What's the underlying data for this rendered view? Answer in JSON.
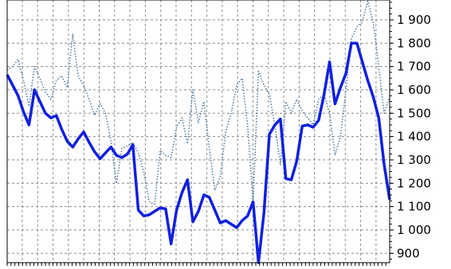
{
  "chart_data": {
    "type": "line",
    "title": "",
    "xlabel": "",
    "ylabel": "",
    "ylim": [
      860,
      1985
    ],
    "x_count": 61,
    "grid": true,
    "legend": "none",
    "y_ticks": [
      900,
      1000,
      1100,
      1200,
      1300,
      1400,
      1500,
      1600,
      1700,
      1800,
      1900
    ],
    "y_tick_labels": [
      "900",
      "1 000",
      "1 100",
      "1 200",
      "1 300",
      "1 400",
      "1 500",
      "1 600",
      "1 700",
      "1 800",
      "1 900"
    ],
    "series": [
      {
        "style": "solid",
        "color": "#1020e0",
        "values": [
          1665,
          1620,
          1575,
          1505,
          1450,
          1600,
          1550,
          1500,
          1480,
          1490,
          1430,
          1380,
          1355,
          1390,
          1420,
          1375,
          1335,
          1305,
          1330,
          1355,
          1320,
          1310,
          1325,
          1365,
          1085,
          1060,
          1065,
          1080,
          1095,
          1090,
          940,
          1085,
          1160,
          1215,
          1035,
          1080,
          1150,
          1140,
          1085,
          1030,
          1040,
          1025,
          1010,
          1040,
          1060,
          1120,
          860,
          1075,
          1410,
          1450,
          1475,
          1220,
          1215,
          1295,
          1445,
          1450,
          1440,
          1470,
          1580,
          1720,
          1540
        ]
      },
      {
        "style": "dotted",
        "color": "#4a78a0",
        "values": [
          1685,
          1700,
          1730,
          1640,
          1530,
          1700,
          1650,
          1590,
          1560,
          1640,
          1660,
          1610,
          1840,
          1660,
          1620,
          1560,
          1490,
          1540,
          1500,
          1380,
          1200,
          1350,
          1360,
          1375,
          1330,
          1250,
          1120,
          1110,
          1340,
          1320,
          1310,
          1440,
          1480,
          1370,
          1600,
          1460,
          1550,
          1350,
          1170,
          1230,
          1420,
          1500,
          1620,
          1650,
          1450,
          1120,
          1680,
          1620,
          1580,
          1450,
          1280,
          1550,
          1500,
          1560,
          1510,
          1480,
          1450,
          1560,
          1580,
          1500,
          1320
        ]
      }
    ],
    "series_tail": {
      "solid": [
        1610,
        1670,
        1800,
        1800,
        1720,
        1640,
        1570,
        1480,
        1280,
        1130
      ],
      "dotted": [
        1400,
        1600,
        1820,
        1870,
        1890,
        1980,
        1890,
        1700,
        1500,
        1570
      ]
    }
  }
}
